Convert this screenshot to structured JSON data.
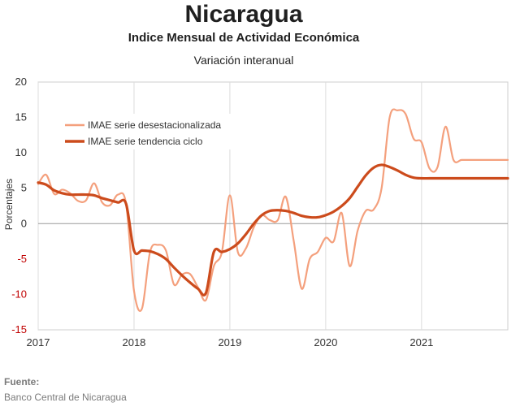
{
  "chart_data": {
    "type": "line",
    "title": "Nicaragua",
    "subtitle": "Indice Mensual de  Actividad Económica",
    "subtitle2": "Variación interanual",
    "ylabel": "Porcentajes",
    "xlabel": "",
    "ylim": [
      -15,
      20
    ],
    "yticks": [
      "20",
      "15",
      "10",
      "5",
      "0",
      "-5",
      "-10",
      "-15"
    ],
    "xlim": [
      2017,
      2021.9
    ],
    "xticks": [
      "2017",
      "2018",
      "2019",
      "2020",
      "2021"
    ],
    "grid": "vertical",
    "legend_position": "top-left",
    "colors": {
      "series1": "#f4a07d",
      "series2": "#cc4b1c",
      "negative_tick": "#c00000"
    },
    "series": [
      {
        "name": "IMAE serie desestacionalizada",
        "x": [
          2017.0,
          2017.083,
          2017.167,
          2017.25,
          2017.333,
          2017.417,
          2017.5,
          2017.583,
          2017.667,
          2017.75,
          2017.833,
          2017.917,
          2018.0,
          2018.083,
          2018.167,
          2018.25,
          2018.333,
          2018.417,
          2018.5,
          2018.583,
          2018.667,
          2018.75,
          2018.833,
          2018.917,
          2019.0,
          2019.083,
          2019.167,
          2019.25,
          2019.333,
          2019.417,
          2019.5,
          2019.583,
          2019.667,
          2019.75,
          2019.833,
          2019.917,
          2020.0,
          2020.083,
          2020.167,
          2020.25,
          2020.333,
          2020.417,
          2020.5,
          2020.583,
          2020.667,
          2020.75,
          2020.833,
          2020.917,
          2021.0,
          2021.083,
          2021.167,
          2021.25,
          2021.333,
          2021.417,
          2021.5,
          2021.583,
          2021.667,
          2021.75,
          2021.833,
          2021.9
        ],
        "values": [
          5.6,
          6.9,
          4.2,
          4.8,
          4.3,
          3.2,
          3.3,
          5.7,
          3.0,
          2.6,
          4.1,
          2.8,
          -9.5,
          -12.0,
          -4.0,
          -3.0,
          -3.8,
          -8.6,
          -7.2,
          -7.1,
          -9.0,
          -10.8,
          -6.0,
          -4.0,
          4.0,
          -4.0,
          -3.5,
          -0.5,
          1.2,
          0.5,
          0.5,
          3.8,
          -2.5,
          -9.2,
          -5.0,
          -4.0,
          -2.0,
          -2.5,
          1.5,
          -6.0,
          -1.0,
          1.8,
          2.0,
          5.0,
          15.0,
          16.0,
          15.5,
          12.0,
          11.5,
          7.8,
          8.0,
          13.7,
          9.0,
          9.0,
          9.0,
          9.0,
          9.0,
          9.0,
          9.0,
          9.0
        ]
      },
      {
        "name": "IMAE serie  tendencia ciclo",
        "x": [
          2017.0,
          2017.083,
          2017.167,
          2017.25,
          2017.333,
          2017.417,
          2017.5,
          2017.583,
          2017.667,
          2017.75,
          2017.833,
          2017.917,
          2018.0,
          2018.083,
          2018.167,
          2018.25,
          2018.333,
          2018.417,
          2018.5,
          2018.583,
          2018.667,
          2018.75,
          2018.833,
          2018.917,
          2019.0,
          2019.083,
          2019.167,
          2019.25,
          2019.333,
          2019.417,
          2019.5,
          2019.583,
          2019.667,
          2019.75,
          2019.833,
          2019.917,
          2020.0,
          2020.083,
          2020.167,
          2020.25,
          2020.333,
          2020.417,
          2020.5,
          2020.583,
          2020.667,
          2020.75,
          2020.833,
          2020.917,
          2021.0,
          2021.083,
          2021.167,
          2021.25,
          2021.333,
          2021.417,
          2021.5,
          2021.583,
          2021.667,
          2021.75,
          2021.833,
          2021.9
        ],
        "values": [
          5.8,
          5.5,
          4.7,
          4.3,
          4.1,
          4.1,
          4.1,
          4.0,
          3.6,
          3.3,
          3.0,
          2.8,
          -3.8,
          -3.8,
          -3.9,
          -4.3,
          -5.0,
          -6.2,
          -7.3,
          -8.3,
          -9.2,
          -9.8,
          -4.0,
          -4.0,
          -3.6,
          -2.8,
          -1.5,
          0.0,
          1.2,
          1.8,
          1.9,
          1.8,
          1.5,
          1.1,
          0.9,
          0.9,
          1.2,
          1.7,
          2.5,
          3.6,
          5.2,
          6.8,
          7.9,
          8.3,
          8.0,
          7.5,
          6.9,
          6.5,
          6.4,
          6.4,
          6.4,
          6.4,
          6.4,
          6.4,
          6.4,
          6.4,
          6.4,
          6.4,
          6.4,
          6.4
        ]
      }
    ]
  },
  "source": {
    "label": "Fuente:",
    "text": "Banco Central de Nicaragua"
  }
}
